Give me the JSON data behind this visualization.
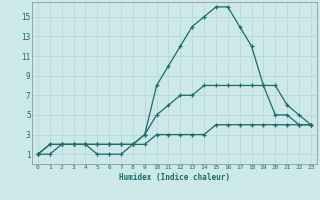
{
  "xlabel": "Humidex (Indice chaleur)",
  "xlim": [
    -0.5,
    23.5
  ],
  "ylim": [
    0,
    16.5
  ],
  "xticks": [
    0,
    1,
    2,
    3,
    4,
    5,
    6,
    7,
    8,
    9,
    10,
    11,
    12,
    13,
    14,
    15,
    16,
    17,
    18,
    19,
    20,
    21,
    22,
    23
  ],
  "yticks": [
    1,
    3,
    5,
    7,
    9,
    11,
    13,
    15
  ],
  "bg_color": "#cce8e8",
  "line_color": "#1a6b6b",
  "grid_color": "#b8d8d8",
  "series": [
    {
      "x": [
        0,
        1,
        2,
        3,
        4,
        5,
        6,
        7,
        8,
        9,
        10,
        11,
        12,
        13,
        14,
        15,
        16,
        17,
        18,
        19,
        20,
        21,
        22,
        23
      ],
      "y": [
        1,
        2,
        2,
        2,
        2,
        1,
        1,
        1,
        2,
        3,
        8,
        10,
        12,
        14,
        15,
        16,
        16,
        14,
        12,
        8,
        5,
        5,
        4,
        4
      ]
    },
    {
      "x": [
        0,
        1,
        2,
        3,
        4,
        5,
        6,
        7,
        8,
        9,
        10,
        11,
        12,
        13,
        14,
        15,
        16,
        17,
        18,
        19,
        20,
        21,
        22,
        23
      ],
      "y": [
        1,
        2,
        2,
        2,
        2,
        2,
        2,
        2,
        2,
        3,
        5,
        6,
        7,
        7,
        8,
        8,
        8,
        8,
        8,
        8,
        8,
        6,
        5,
        4
      ]
    },
    {
      "x": [
        0,
        1,
        2,
        3,
        4,
        5,
        6,
        7,
        8,
        9,
        10,
        11,
        12,
        13,
        14,
        15,
        16,
        17,
        18,
        19,
        20,
        21,
        22,
        23
      ],
      "y": [
        1,
        1,
        2,
        2,
        2,
        2,
        2,
        2,
        2,
        2,
        3,
        3,
        3,
        3,
        3,
        4,
        4,
        4,
        4,
        4,
        4,
        4,
        4,
        4
      ]
    }
  ]
}
